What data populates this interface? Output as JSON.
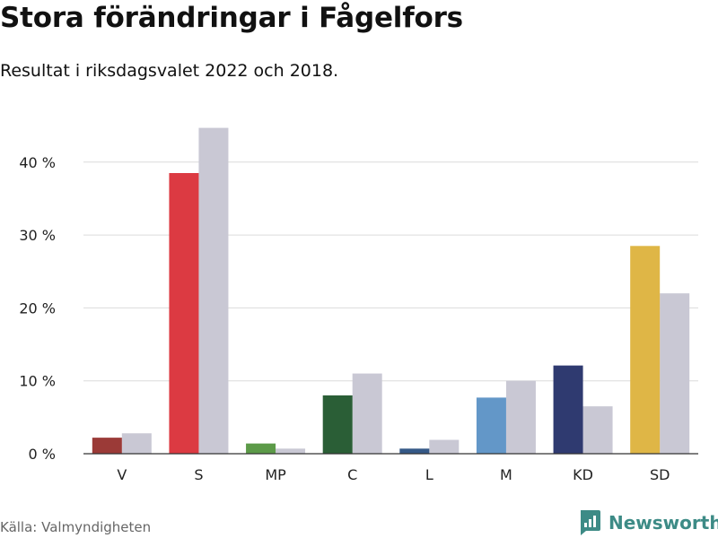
{
  "title": "Stora förändringar i Fågelfors",
  "subtitle": "Resultat i riksdagsvalet 2022 och 2018.",
  "source": "Källa: Valmyndigheten",
  "brand": {
    "name": "Newsworthy",
    "icon": "newsworthy-logo-icon",
    "color": "#3d8b86"
  },
  "chart_data": {
    "type": "bar",
    "categories": [
      "V",
      "S",
      "MP",
      "C",
      "L",
      "M",
      "KD",
      "SD"
    ],
    "series": [
      {
        "values": [
          2.2,
          38.5,
          1.4,
          8.0,
          0.7,
          7.7,
          12.1,
          28.5
        ],
        "colors": [
          "#9b3a37",
          "#dc3a42",
          "#5c9a48",
          "#2a5e36",
          "#355987",
          "#6397c8",
          "#2f3a70",
          "#dfb646"
        ]
      },
      {
        "values": [
          2.8,
          44.7,
          0.7,
          11.0,
          1.9,
          10.0,
          6.5,
          22.0
        ],
        "color": "#c9c8d4"
      }
    ],
    "yticks": [
      {
        "value": 0,
        "label": "0 %"
      },
      {
        "value": 10,
        "label": "10 %"
      },
      {
        "value": 20,
        "label": "20 %"
      },
      {
        "value": 30,
        "label": "30 %"
      },
      {
        "value": 40,
        "label": "40 %"
      }
    ],
    "ylim": [
      0,
      45
    ],
    "grid": true,
    "legend": "none"
  }
}
